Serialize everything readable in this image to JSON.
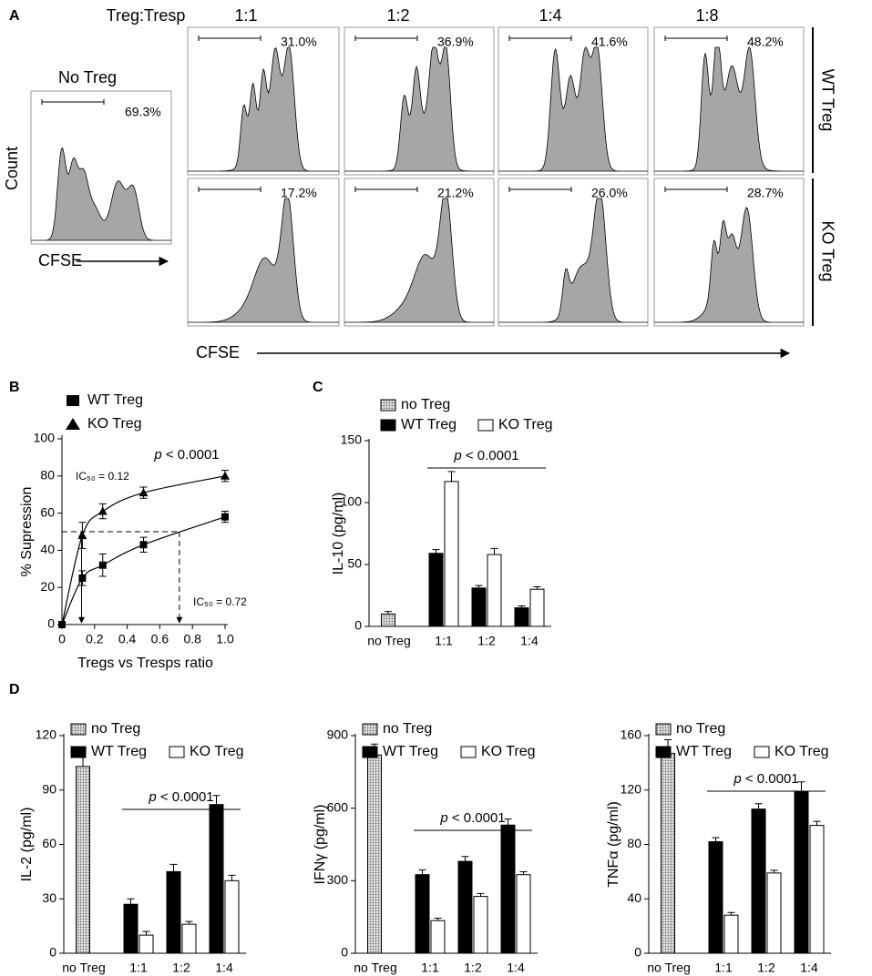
{
  "panel_a": {
    "label": "A",
    "header": "Treg:Tresp",
    "ratios": [
      "1:1",
      "1:2",
      "1:4",
      "1:8"
    ],
    "control": {
      "title": "No Treg",
      "value_label": "69.3%"
    },
    "rows": [
      {
        "name": "WT Treg",
        "value_labels": [
          "31.0%",
          "36.9%",
          "41.6%",
          "48.2%"
        ]
      },
      {
        "name": "KO Treg",
        "value_labels": [
          "17.2%",
          "21.2%",
          "26.0%",
          "28.7%"
        ]
      }
    ],
    "y_label": "Count",
    "x_label_small": "CFSE",
    "x_label": "CFSE"
  },
  "chart_data": [
    {
      "label": "B",
      "type": "scatter",
      "series": [
        {
          "name": "WT Treg",
          "marker": "square",
          "color": "#000000",
          "x": [
            0,
            0.125,
            0.25,
            0.5,
            1
          ],
          "values": [
            0,
            25,
            32,
            43,
            58
          ],
          "errors": [
            0,
            4,
            6,
            4,
            3
          ]
        },
        {
          "name": "KO Treg",
          "marker": "triangle",
          "color": "#000000",
          "x": [
            0.125,
            0.25,
            0.5,
            1
          ],
          "values": [
            48,
            61,
            71,
            80
          ],
          "errors": [
            7,
            4,
            3,
            3
          ]
        }
      ],
      "xlim": [
        0,
        1
      ],
      "ylim": [
        0,
        100
      ],
      "xticks": [
        0,
        0.2,
        0.4,
        0.6,
        0.8,
        {
          "value": 1,
          "label": "1.0"
        }
      ],
      "yticks": [
        0,
        20,
        40,
        60,
        80,
        100
      ],
      "x_label": "Tregs vs Tresps ratio",
      "y_label": "% Supression",
      "p_value": "p < 0.0001",
      "ic50": [
        {
          "label": "IC₅₀ = 0.12",
          "x": 0.12
        },
        {
          "label": "IC₅₀ = 0.72",
          "x": 0.72
        }
      ],
      "ic50_level": 50
    },
    {
      "label": "C",
      "type": "bar",
      "y_label": "IL-10 (pg/ml)",
      "categories": [
        "no Treg",
        "1:1",
        "1:2",
        "1:4"
      ],
      "series": [
        {
          "name": "no Treg",
          "color": "pattern",
          "values": [
            10,
            null,
            null,
            null
          ],
          "errors": [
            2,
            null,
            null,
            null
          ]
        },
        {
          "name": "WT Treg",
          "color": "#000000",
          "values": [
            null,
            59,
            31,
            15
          ],
          "errors": [
            null,
            3,
            2,
            1.5
          ]
        },
        {
          "name": "KO Treg",
          "color": "#ffffff",
          "values": [
            null,
            117,
            58,
            30
          ],
          "errors": [
            null,
            8,
            5,
            2
          ]
        }
      ],
      "ylim": [
        0,
        150
      ],
      "yticks": [
        0,
        50,
        100,
        150
      ],
      "p_value": "p < 0.0001"
    },
    {
      "label": "D",
      "type": "bar",
      "y_label": "IL-2 (pg/ml)",
      "categories": [
        "no Treg",
        "1:1",
        "1:2",
        "1:4"
      ],
      "series": [
        {
          "name": "no Treg",
          "color": "pattern",
          "values": [
            103,
            null,
            null,
            null
          ],
          "errors": [
            10,
            null,
            null,
            null
          ]
        },
        {
          "name": "WT Treg",
          "color": "#000000",
          "values": [
            null,
            27,
            45,
            82
          ],
          "errors": [
            null,
            3,
            4,
            5
          ]
        },
        {
          "name": "KO Treg",
          "color": "#ffffff",
          "values": [
            null,
            10,
            16,
            40
          ],
          "errors": [
            null,
            2,
            1.5,
            3
          ]
        }
      ],
      "ylim": [
        0,
        120
      ],
      "yticks": [
        0,
        30,
        60,
        90,
        120
      ],
      "p_value": "p < 0.0001"
    },
    {
      "type": "bar",
      "y_label": "IFNγ (pg/ml)",
      "categories": [
        "no Treg",
        "1:1",
        "1:2",
        "1:4"
      ],
      "series": [
        {
          "name": "no Treg",
          "color": "pattern",
          "values": [
            820,
            null,
            null,
            null
          ],
          "errors": [
            45,
            null,
            null,
            null
          ]
        },
        {
          "name": "WT Treg",
          "color": "#000000",
          "values": [
            null,
            325,
            380,
            530
          ],
          "errors": [
            null,
            20,
            20,
            25
          ]
        },
        {
          "name": "KO Treg",
          "color": "#ffffff",
          "values": [
            null,
            135,
            235,
            325
          ],
          "errors": [
            null,
            10,
            12,
            12
          ]
        }
      ],
      "ylim": [
        0,
        900
      ],
      "yticks": [
        0,
        300,
        600,
        900
      ],
      "p_value": "p < 0.0001"
    },
    {
      "type": "bar",
      "y_label": "TNFα (pg/ml)",
      "categories": [
        "no Treg",
        "1:1",
        "1:2",
        "1:4"
      ],
      "series": [
        {
          "name": "no Treg",
          "color": "pattern",
          "values": [
            147,
            null,
            null,
            null
          ],
          "errors": [
            10,
            null,
            null,
            null
          ]
        },
        {
          "name": "WT Treg",
          "color": "#000000",
          "values": [
            null,
            82,
            106,
            119
          ],
          "errors": [
            null,
            3,
            4,
            7
          ]
        },
        {
          "name": "KO Treg",
          "color": "#ffffff",
          "values": [
            null,
            28,
            59,
            94
          ],
          "errors": [
            null,
            2,
            2,
            3
          ]
        }
      ],
      "ylim": [
        0,
        160
      ],
      "yticks": [
        0,
        40,
        80,
        120,
        160
      ],
      "p_value": "p < 0.0001"
    }
  ]
}
